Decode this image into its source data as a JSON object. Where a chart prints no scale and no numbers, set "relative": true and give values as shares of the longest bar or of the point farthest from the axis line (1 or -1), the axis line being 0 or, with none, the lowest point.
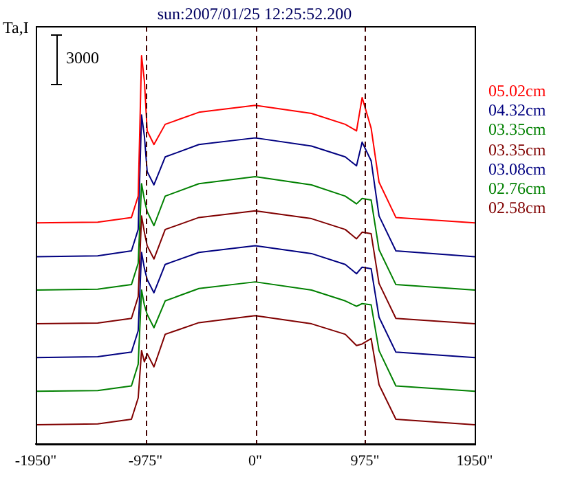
{
  "chart_data": {
    "type": "line",
    "title": "sun:2007/01/25 12:25:52.200",
    "ylabel": "Ta,I",
    "relative": true,
    "x": [
      -1950,
      -1400,
      -1100,
      -1040,
      -1010,
      -985,
      -960,
      -900,
      -800,
      -500,
      0,
      500,
      800,
      900,
      950,
      1030,
      1100,
      1250,
      1950
    ],
    "xlim": [
      -1950,
      1950
    ],
    "xticks": [
      {
        "value": -1950,
        "label": "-1950\""
      },
      {
        "value": -975,
        "label": "-975\""
      },
      {
        "value": 0,
        "label": "0\""
      },
      {
        "value": 975,
        "label": "975\""
      },
      {
        "value": 1950,
        "label": "1950\""
      }
    ],
    "series": [
      {
        "name": "05.02cm",
        "color": "#ff0000",
        "values": [
          0.569,
          0.571,
          0.583,
          0.638,
          1,
          0.935,
          0.806,
          0.771,
          0.823,
          0.854,
          0.872,
          0.851,
          0.823,
          0.806,
          0.892,
          0.813,
          0.674,
          0.583,
          0.569
        ]
      },
      {
        "name": "04.32cm",
        "color": "#000080",
        "values": [
          0.482,
          0.484,
          0.497,
          0.552,
          0.847,
          0.793,
          0.701,
          0.667,
          0.739,
          0.771,
          0.788,
          0.767,
          0.739,
          0.716,
          0.777,
          0.729,
          0.587,
          0.497,
          0.482
        ]
      },
      {
        "name": "03.35cm",
        "color": "#008000",
        "values": [
          0.396,
          0.398,
          0.41,
          0.465,
          0.67,
          0.629,
          0.598,
          0.562,
          0.638,
          0.67,
          0.688,
          0.667,
          0.638,
          0.618,
          0.632,
          0.628,
          0.5,
          0.41,
          0.396
        ]
      },
      {
        "name": "03.35cm",
        "color": "#800000",
        "values": [
          0.309,
          0.311,
          0.323,
          0.379,
          0.587,
          0.545,
          0.51,
          0.476,
          0.552,
          0.583,
          0.6,
          0.58,
          0.552,
          0.528,
          0.545,
          0.541,
          0.413,
          0.323,
          0.309
        ]
      },
      {
        "name": "03.08cm",
        "color": "#000080",
        "values": [
          0.222,
          0.224,
          0.236,
          0.291,
          0.493,
          0.452,
          0.423,
          0.389,
          0.462,
          0.493,
          0.51,
          0.49,
          0.462,
          0.438,
          0.455,
          0.451,
          0.326,
          0.236,
          0.222
        ]
      },
      {
        "name": "02.76cm",
        "color": "#008000",
        "values": [
          0.135,
          0.137,
          0.149,
          0.205,
          0.396,
          0.357,
          0.333,
          0.299,
          0.368,
          0.4,
          0.417,
          0.396,
          0.368,
          0.354,
          0.361,
          0.358,
          0.24,
          0.149,
          0.135
        ]
      },
      {
        "name": "02.58cm",
        "color": "#800000",
        "values": [
          0.049,
          0.051,
          0.063,
          0.118,
          0.24,
          0.211,
          0.232,
          0.198,
          0.282,
          0.312,
          0.33,
          0.309,
          0.282,
          0.253,
          0.257,
          0.271,
          0.152,
          0.063,
          0.049
        ]
      }
    ],
    "ref_lines": [
      {
        "axis": "x",
        "value": -975,
        "color": "#400000",
        "line_style": "dashed"
      },
      {
        "axis": "x",
        "value": 0,
        "color": "#400000",
        "line_style": "dashed"
      },
      {
        "axis": "x",
        "value": 975,
        "color": "#400000",
        "line_style": "dashed"
      }
    ],
    "annotations": [
      "3000"
    ],
    "legend": "right",
    "grid": false,
    "marker": "none",
    "line_style": "solid"
  }
}
